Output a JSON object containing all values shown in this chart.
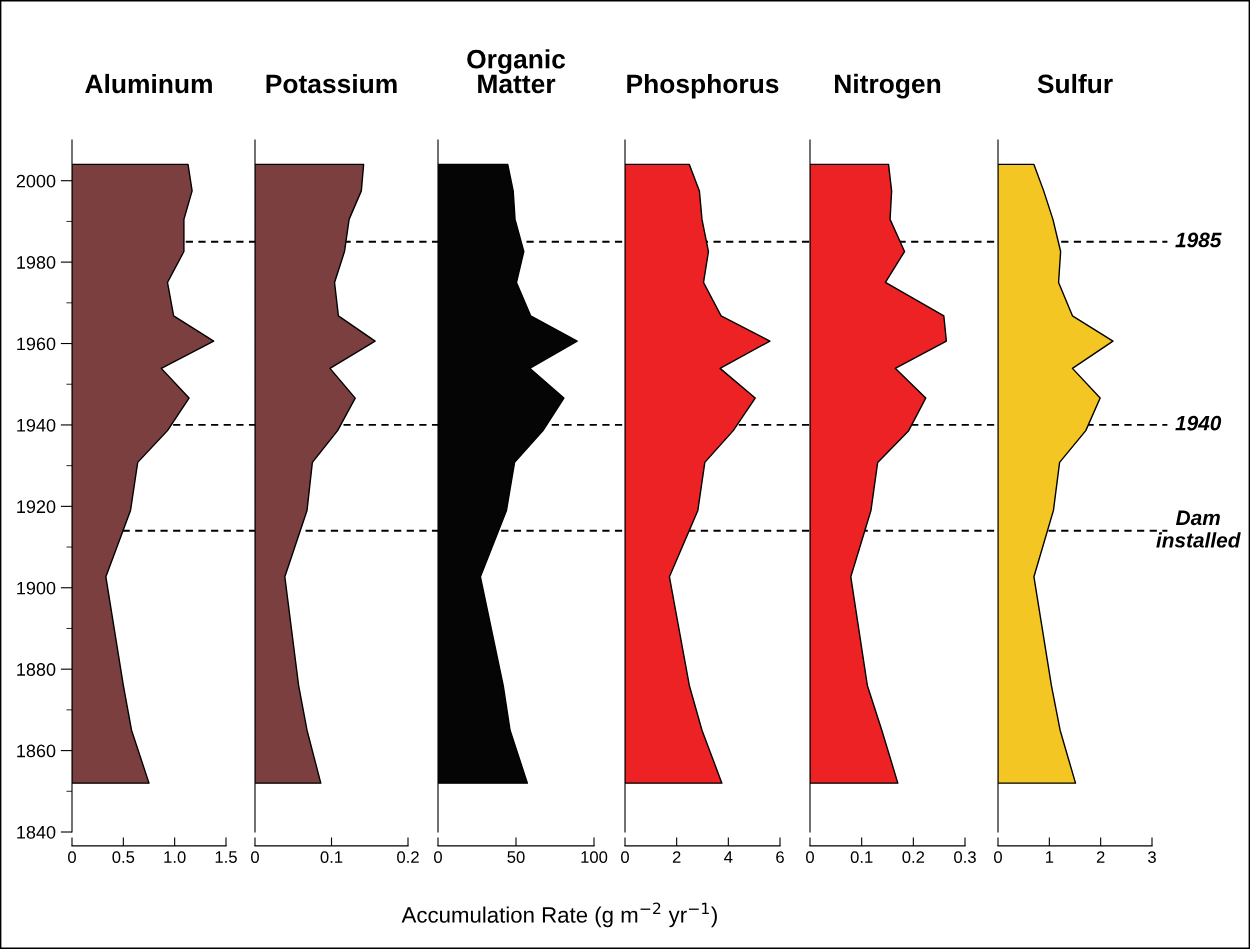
{
  "chart_data": [
    {
      "type": "area",
      "orientation": "horizontal",
      "title": "Aluminum",
      "x": [
        2004,
        1997.5,
        1990.5,
        1982.6,
        1975,
        1966.8,
        1960.6,
        1953.9,
        1946.6,
        1938.6,
        1930.8,
        1919,
        1902.7,
        1876,
        1865,
        1852
      ],
      "series": [
        {
          "color": "#7b3f3f",
          "values": [
            1.13,
            1.17,
            1.09,
            1.09,
            0.93,
            0.99,
            1.38,
            0.87,
            1.14,
            0.93,
            0.64,
            0.57,
            0.33,
            0.5,
            0.58,
            0.75
          ]
        }
      ],
      "xlim": [
        0,
        1.5
      ],
      "xticks": [
        0,
        0.5,
        {
          "value": 1.0,
          "label": "1.0"
        },
        1.5
      ],
      "ylim": [
        1840,
        2010
      ],
      "yticks": [
        1840,
        {
          "value": 1850,
          "label": null
        },
        1860,
        {
          "value": 1870,
          "label": null
        },
        1880,
        {
          "value": 1890,
          "label": null
        },
        1900,
        {
          "value": 1910,
          "label": null
        },
        1920,
        {
          "value": 1930,
          "label": null
        },
        1940,
        {
          "value": 1950,
          "label": null
        },
        1960,
        {
          "value": 1970,
          "label": null
        },
        1980,
        {
          "value": 1990,
          "label": null
        },
        2000
      ],
      "ref_lines": [
        {
          "axis": "y",
          "value": 1985,
          "line_style": "dashed"
        },
        {
          "axis": "y",
          "value": 1940,
          "line_style": "dashed"
        },
        {
          "axis": "y",
          "value": 1914,
          "line_style": "dashed"
        }
      ]
    },
    {
      "type": "area",
      "orientation": "horizontal",
      "title": "Potassium",
      "x": [
        2004,
        1997.5,
        1990.5,
        1982.6,
        1975,
        1966.8,
        1960.6,
        1953.9,
        1946.6,
        1938.6,
        1930.8,
        1919,
        1902.7,
        1876,
        1865,
        1852
      ],
      "series": [
        {
          "color": "#7b3f3f",
          "values": [
            0.142,
            0.139,
            0.123,
            0.117,
            0.104,
            0.109,
            0.157,
            0.098,
            0.131,
            0.108,
            0.075,
            0.068,
            0.039,
            0.057,
            0.068,
            0.086
          ]
        }
      ],
      "xlim": [
        0,
        0.2
      ],
      "xticks": [
        0,
        0.1,
        0.2
      ],
      "ylim": [
        1840,
        2010
      ],
      "tick_labels": "x",
      "ref_lines": [
        {
          "axis": "y",
          "value": 1985,
          "line_style": "dashed"
        },
        {
          "axis": "y",
          "value": 1940,
          "line_style": "dashed"
        },
        {
          "axis": "y",
          "value": 1914,
          "line_style": "dashed"
        }
      ]
    },
    {
      "type": "area",
      "orientation": "horizontal",
      "title": "Organic\nMatter",
      "xlabel": "Accumulation Rate (g m$^{−2}$ yr$^{−1}$)",
      "x": [
        2004,
        1997.5,
        1990.5,
        1982.6,
        1975,
        1966.8,
        1960.6,
        1953.9,
        1946.6,
        1938.6,
        1930.8,
        1919,
        1902.7,
        1876,
        1865,
        1852
      ],
      "series": [
        {
          "color": "#050505",
          "values": [
            44.7,
            48.2,
            49.4,
            55,
            50.3,
            59.4,
            89.2,
            58.8,
            80.7,
            67.3,
            49.1,
            43.9,
            27.2,
            41.8,
            46.2,
            57.3
          ]
        }
      ],
      "xlim": [
        0,
        100
      ],
      "xticks": [
        0,
        50,
        100
      ],
      "ylim": [
        1840,
        2010
      ],
      "tick_labels": "x",
      "ref_lines": [
        {
          "axis": "y",
          "value": 1985,
          "line_style": "dashed"
        },
        {
          "axis": "y",
          "value": 1940,
          "line_style": "dashed"
        },
        {
          "axis": "y",
          "value": 1914,
          "line_style": "dashed"
        }
      ]
    },
    {
      "type": "area",
      "orientation": "horizontal",
      "title": "Phosphorus",
      "x": [
        2004,
        1997.5,
        1990.5,
        1982.6,
        1975,
        1966.8,
        1960.6,
        1953.9,
        1946.6,
        1938.6,
        1930.8,
        1919,
        1902.7,
        1876,
        1865,
        1852
      ],
      "series": [
        {
          "color": "#ec2224",
          "values": [
            2.49,
            2.88,
            2.98,
            3.23,
            3.04,
            3.72,
            5.61,
            3.68,
            5.04,
            4.19,
            3.09,
            2.82,
            1.72,
            2.49,
            2.98,
            3.75
          ]
        }
      ],
      "xlim": [
        0,
        6
      ],
      "xticks": [
        0,
        2,
        4,
        6
      ],
      "ylim": [
        1840,
        2010
      ],
      "tick_labels": "x",
      "ref_lines": [
        {
          "axis": "y",
          "value": 1985,
          "line_style": "dashed"
        },
        {
          "axis": "y",
          "value": 1940,
          "line_style": "dashed"
        },
        {
          "axis": "y",
          "value": 1914,
          "line_style": "dashed"
        }
      ]
    },
    {
      "type": "area",
      "orientation": "horizontal",
      "title": "Nitrogen",
      "x": [
        2004,
        1997.5,
        1990.5,
        1982.6,
        1975,
        1966.8,
        1960.6,
        1953.9,
        1946.6,
        1938.6,
        1930.8,
        1919,
        1902.7,
        1876,
        1865,
        1852
      ],
      "series": [
        {
          "color": "#ec2224",
          "values": [
            0.152,
            0.158,
            0.155,
            0.183,
            0.146,
            0.259,
            0.264,
            0.165,
            0.224,
            0.191,
            0.131,
            0.118,
            0.079,
            0.111,
            0.139,
            0.17
          ]
        }
      ],
      "xlim": [
        0,
        0.3
      ],
      "xticks": [
        0,
        0.1,
        0.2,
        0.3
      ],
      "ylim": [
        1840,
        2010
      ],
      "tick_labels": "x",
      "ref_lines": [
        {
          "axis": "y",
          "value": 1985,
          "line_style": "dashed"
        },
        {
          "axis": "y",
          "value": 1940,
          "line_style": "dashed"
        },
        {
          "axis": "y",
          "value": 1914,
          "line_style": "dashed"
        }
      ]
    },
    {
      "type": "area",
      "orientation": "horizontal",
      "title": "Sulfur",
      "x": [
        2004,
        1997.5,
        1990.5,
        1982.6,
        1975,
        1966.8,
        1960.6,
        1953.9,
        1946.6,
        1938.6,
        1930.8,
        1919,
        1902.7,
        1876,
        1865,
        1852
      ],
      "series": [
        {
          "color": "#f4c623",
          "values": [
            0.7,
            0.89,
            1.07,
            1.22,
            1.18,
            1.45,
            2.24,
            1.45,
            1.99,
            1.71,
            1.2,
            1.08,
            0.7,
            1.04,
            1.21,
            1.51
          ]
        }
      ],
      "xlim": [
        0,
        3
      ],
      "xticks": [
        0,
        1,
        2,
        3
      ],
      "ylim": [
        1840,
        2010
      ],
      "tick_labels": "x",
      "ref_lines": [
        {
          "axis": "y",
          "value": 1985,
          "label": "1985",
          "line_style": "dashed"
        },
        {
          "axis": "y",
          "value": 1940,
          "label": "1940",
          "line_style": "dashed"
        },
        {
          "axis": "y",
          "value": 1914,
          "label": "Dam\ninstalled",
          "line_style": "dashed"
        }
      ]
    }
  ]
}
